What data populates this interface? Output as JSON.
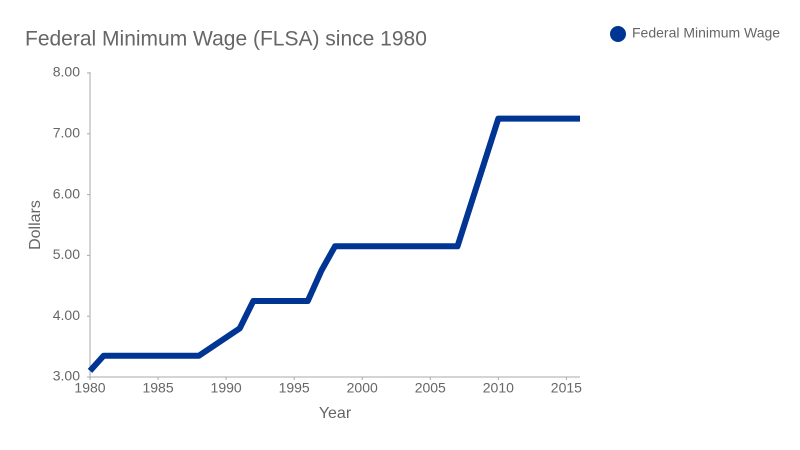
{
  "chart_data": {
    "type": "line",
    "title": "Federal Minimum Wage (FLSA) since 1980",
    "x_label": "Year",
    "y_label": "Dollars",
    "x": [
      1980,
      1981,
      1988,
      1991,
      1992,
      1996,
      1997,
      1998,
      2007,
      2008,
      2009,
      2010,
      2016
    ],
    "series": [
      {
        "name": "Federal Minimum Wage",
        "color": "#003594",
        "values": [
          3.1,
          3.35,
          3.35,
          3.8,
          4.25,
          4.25,
          4.75,
          5.15,
          5.15,
          5.85,
          6.55,
          7.25,
          7.25
        ]
      }
    ],
    "xlim": [
      1980,
      2016
    ],
    "xticks": [
      1980,
      1985,
      1990,
      1995,
      2000,
      2005,
      2010,
      2015
    ],
    "ylim": [
      3,
      8
    ],
    "yticks": [
      {
        "value": 3,
        "label": "3.00"
      },
      {
        "value": 4,
        "label": "4.00"
      },
      {
        "value": 5,
        "label": "5.00"
      },
      {
        "value": 6,
        "label": "6.00"
      },
      {
        "value": 7,
        "label": "7.00"
      },
      {
        "value": 8,
        "label": "8.00"
      }
    ],
    "grid": false,
    "legend": "top-right"
  }
}
